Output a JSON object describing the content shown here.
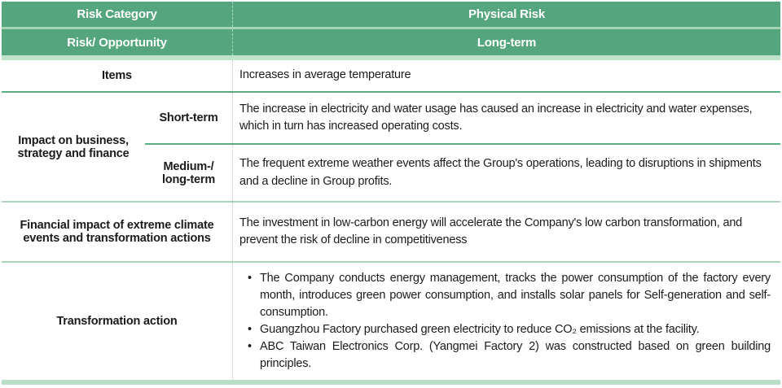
{
  "colors": {
    "header_green": "#55a67e",
    "header_sep": "#a4d4b4",
    "header_band": "#bfe2cb",
    "line_strong": "#55ad81",
    "line_light": "#a9d6bb",
    "bottom_band": "#b9dfc8"
  },
  "header": {
    "risk_category_label": "Risk Category",
    "risk_category_value": "Physical Risk",
    "risk_opportunity_label": "Risk/ Opportunity",
    "risk_opportunity_value": "Long-term"
  },
  "rows": {
    "items": {
      "label": "Items",
      "content": "Increases in average temperature"
    },
    "impact": {
      "label": "Impact on business,\nstrategy and finance",
      "short_term": {
        "label": "Short-term",
        "content": "The increase in electricity and water usage has caused an increase in electricity and water expenses, which in turn has increased operating costs."
      },
      "medium_term": {
        "label": "Medium-/\nlong-term",
        "content": "The frequent extreme weather events affect the Group's operations, leading to disruptions in shipments and a decline in Group profits."
      }
    },
    "financial": {
      "label": "Financial impact of extreme climate\nevents and transformation actions",
      "content": "The investment in low-carbon energy will accelerate the Company's low carbon transformation, and prevent the risk of decline in competitiveness"
    },
    "transformation": {
      "label": "Transformation action",
      "bullets": [
        "The Company conducts energy management, tracks the power consumption of the factory every month, introduces green power consumption, and installs solar panels for Self-generation and self-consumption.",
        "Guangzhou Factory purchased green electricity to reduce CO₂ emissions at the facility.",
        "ABC Taiwan Electronics Corp. (Yangmei Factory 2) was constructed based on green building principles."
      ]
    }
  }
}
